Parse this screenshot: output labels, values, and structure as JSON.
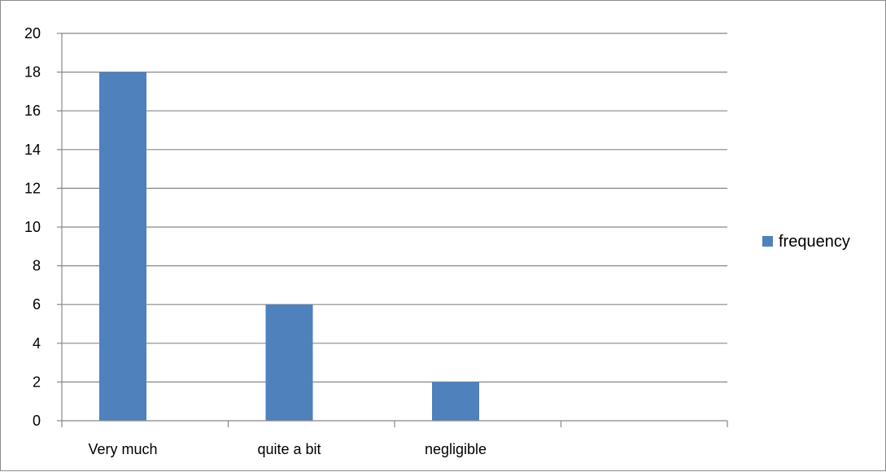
{
  "chart_data": {
    "type": "bar",
    "categories": [
      "Very much",
      "quite a bit",
      "negligible",
      ""
    ],
    "series": [
      {
        "name": "frequency",
        "values": [
          18,
          6,
          2,
          null
        ],
        "color": "#4f81bd"
      }
    ],
    "title": "",
    "xlabel": "",
    "ylabel": "",
    "ylim": [
      0,
      20
    ],
    "yticks": [
      0,
      2,
      4,
      6,
      8,
      10,
      12,
      14,
      16,
      18,
      20
    ],
    "grid": true,
    "legend_position": "right"
  }
}
